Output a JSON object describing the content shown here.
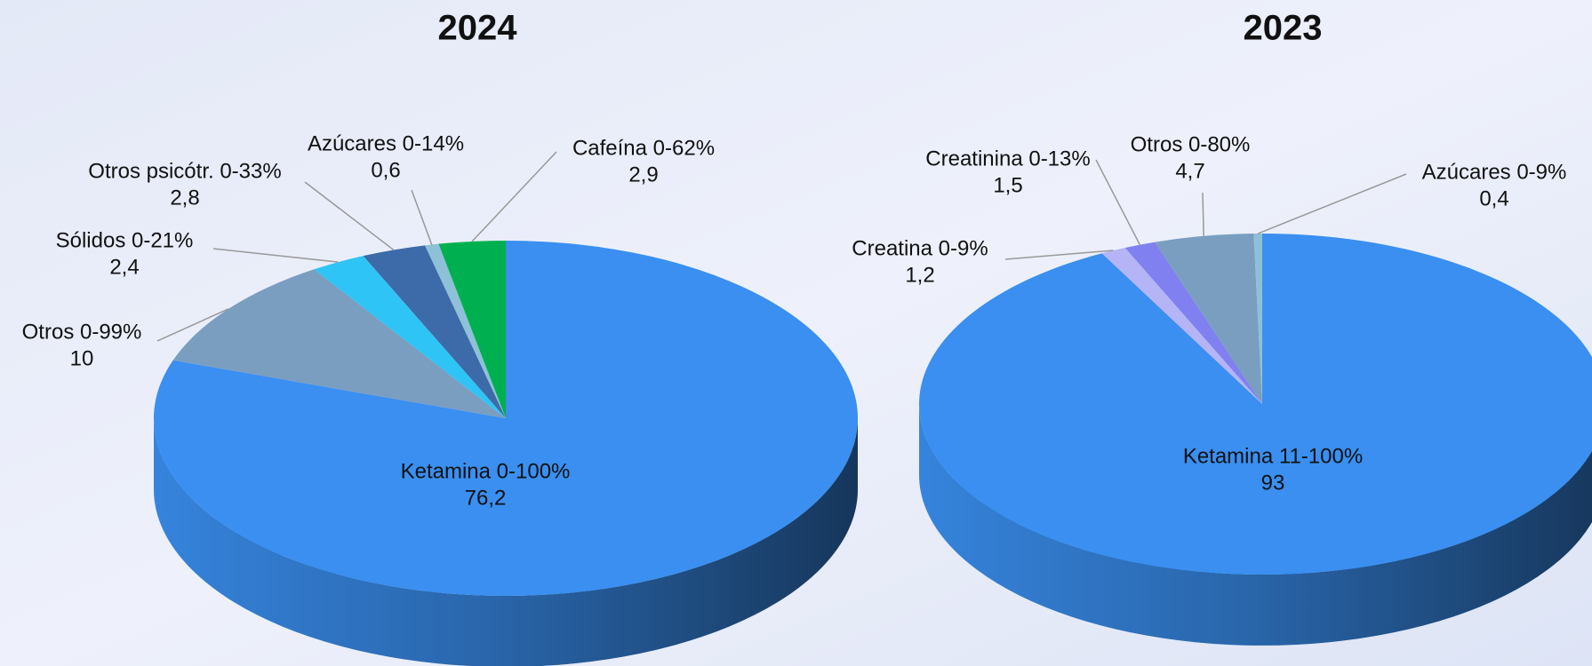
{
  "chart_data": [
    {
      "type": "pie",
      "title": "2024",
      "categories": [
        "Ketamina 0-100%",
        "Otros 0-99%",
        "Sólidos 0-21%",
        "Otros psicótr. 0-33%",
        "Azúcares 0-14%",
        "Cafeína 0-62%"
      ],
      "values": [
        76.2,
        10,
        2.4,
        2.8,
        0.6,
        2.9
      ],
      "value_labels": [
        "76,2",
        "10",
        "2,4",
        "2,8",
        "0,6",
        "2,9"
      ],
      "colors": [
        "#3a8ff0",
        "#7a9ec0",
        "#2ec4f5",
        "#3d6aa8",
        "#8ec0d8",
        "#00b050"
      ]
    },
    {
      "type": "pie",
      "title": "2023",
      "categories": [
        "Ketamina 11-100%",
        "Creatina 0-9%",
        "Creatinina 0-13%",
        "Otros 0-80%",
        "Azúcares 0-9%"
      ],
      "values": [
        93,
        1.2,
        1.5,
        4.7,
        0.4
      ],
      "value_labels": [
        "93",
        "1,2",
        "1,5",
        "4,7",
        "0,4"
      ],
      "colors": [
        "#3a8ff0",
        "#b4b4f6",
        "#8080f0",
        "#7a9ec0",
        "#8ec0d8"
      ]
    }
  ]
}
